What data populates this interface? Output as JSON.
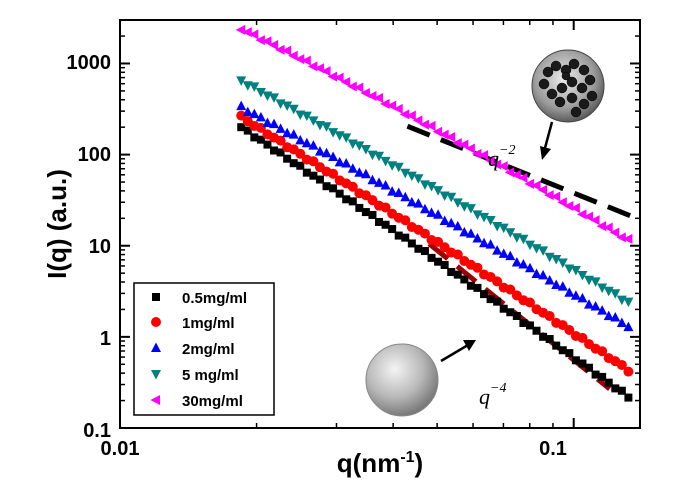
{
  "chart_data": {
    "type": "scatter",
    "title": "",
    "xlabel": "q(nm",
    "xlabel_sup": "-1",
    "xlabel_end": ")",
    "ylabel": "I(q) (a.u.)",
    "xscale": "log",
    "yscale": "log",
    "xlim": [
      0.01,
      0.14
    ],
    "ylim": [
      0.1,
      3000
    ],
    "x_ticks": [
      0.01,
      0.1
    ],
    "x_tick_labels": [
      "0.01",
      "0.1"
    ],
    "y_ticks": [
      0.1,
      1,
      10,
      100,
      1000
    ],
    "y_tick_labels": [
      "0.1",
      "1",
      "10",
      "100",
      "1000"
    ],
    "grid": false,
    "legend_position": "bottom-left",
    "series": [
      {
        "name": "0.5mg/ml",
        "marker": "square",
        "color": "#000000",
        "q_start": 0.0185,
        "q_end": 0.132,
        "i_start": 200,
        "i_end": 0.22,
        "points": 60
      },
      {
        "name": "1mg/ml",
        "marker": "circle",
        "color": "#ff0000",
        "q_start": 0.0185,
        "q_end": 0.132,
        "i_start": 260,
        "i_end": 0.43,
        "points": 60
      },
      {
        "name": "2mg/ml",
        "marker": "triangle-up",
        "color": "#0000ff",
        "q_start": 0.0185,
        "q_end": 0.132,
        "i_start": 330,
        "i_end": 1.3,
        "points": 60
      },
      {
        "name": "5 mg/ml",
        "marker": "triangle-down",
        "color": "#008080",
        "q_start": 0.0185,
        "q_end": 0.132,
        "i_start": 650,
        "i_end": 2.4,
        "points": 60
      },
      {
        "name": "30mg/ml",
        "marker": "triangle-left",
        "color": "#ff00ff",
        "q_start": 0.0185,
        "q_end": 0.132,
        "i_start": 2400,
        "i_end": 11.5,
        "points": 60
      }
    ],
    "guide_lines": [
      {
        "label": "q",
        "label_sup": "-2",
        "slope": -2,
        "color": "#000000",
        "q_start": 0.043,
        "q_end": 0.14,
        "i_start": 205
      },
      {
        "label": "q",
        "label_sup": "-4",
        "slope": -4,
        "color": "#a00000",
        "q_start": 0.048,
        "q_end": 0.12,
        "i_start": 10.5
      }
    ],
    "annotations": [
      {
        "id": "q-2",
        "base": "q",
        "sup": "−2"
      },
      {
        "id": "q-4",
        "base": "q",
        "sup": "−4"
      }
    ]
  }
}
